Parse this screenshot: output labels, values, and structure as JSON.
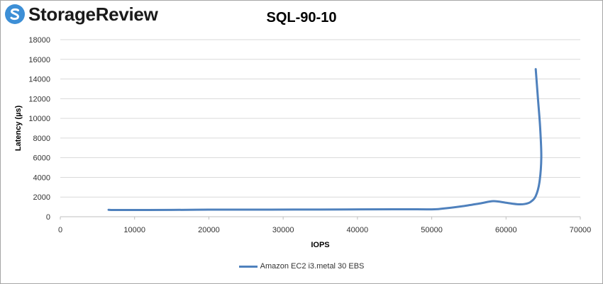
{
  "brand": {
    "name": "StorageReview",
    "accent": "#4f81bd",
    "logo_color": "#3d8fd6",
    "logo_icon": "storagereview-logo-icon"
  },
  "chart_data": {
    "type": "line",
    "title": "SQL-90-10",
    "xlabel": "IOPS",
    "ylabel": "Latency (µs)",
    "xlim": [
      0,
      70000
    ],
    "ylim": [
      0,
      18000
    ],
    "x_ticks": [
      0,
      10000,
      20000,
      30000,
      40000,
      50000,
      60000,
      70000
    ],
    "y_ticks": [
      0,
      2000,
      4000,
      6000,
      8000,
      10000,
      12000,
      14000,
      16000,
      18000
    ],
    "grid": "horizontal",
    "legend_position": "bottom",
    "series": [
      {
        "name": "Amazon EC2 i3.metal 30 EBS",
        "color": "#4f81bd",
        "points": [
          [
            6500,
            700
          ],
          [
            8000,
            680
          ],
          [
            15000,
            690
          ],
          [
            20000,
            720
          ],
          [
            25000,
            720
          ],
          [
            35000,
            730
          ],
          [
            45000,
            760
          ],
          [
            50000,
            750
          ],
          [
            51500,
            830
          ],
          [
            54000,
            1050
          ],
          [
            56500,
            1350
          ],
          [
            58300,
            1580
          ],
          [
            60000,
            1420
          ],
          [
            61500,
            1270
          ],
          [
            62500,
            1290
          ],
          [
            63300,
            1500
          ],
          [
            64000,
            2100
          ],
          [
            64500,
            3500
          ],
          [
            64750,
            6000
          ],
          [
            64600,
            9000
          ],
          [
            64300,
            12000
          ],
          [
            64000,
            15000
          ]
        ]
      }
    ]
  }
}
